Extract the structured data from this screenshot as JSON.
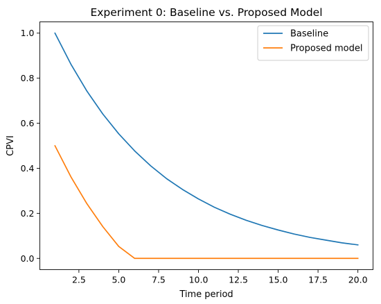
{
  "chart_data": {
    "type": "line",
    "title": "Experiment 0: Baseline vs. Proposed Model",
    "xlabel": "Time period",
    "ylabel": "CPVI",
    "xlim": [
      0.05,
      20.95
    ],
    "ylim": [
      -0.05,
      1.05
    ],
    "x_ticks": [
      2.5,
      5.0,
      7.5,
      10.0,
      12.5,
      15.0,
      17.5,
      20.0
    ],
    "x_tick_labels": [
      "2.5",
      "5.0",
      "7.5",
      "10.0",
      "12.5",
      "15.0",
      "17.5",
      "20.0"
    ],
    "y_ticks": [
      0.0,
      0.2,
      0.4,
      0.6,
      0.8,
      1.0
    ],
    "y_tick_labels": [
      "0.0",
      "0.2",
      "0.4",
      "0.6",
      "0.8",
      "1.0"
    ],
    "grid": false,
    "legend_position": "top-right",
    "x": [
      1,
      2,
      3,
      4,
      5,
      6,
      7,
      8,
      9,
      10,
      11,
      12,
      13,
      14,
      15,
      16,
      17,
      18,
      19,
      20
    ],
    "series": [
      {
        "name": "Baseline",
        "color": "#1f77b4",
        "values": [
          1.0,
          0.862,
          0.743,
          0.641,
          0.553,
          0.477,
          0.411,
          0.354,
          0.306,
          0.264,
          0.227,
          0.196,
          0.169,
          0.146,
          0.126,
          0.108,
          0.093,
          0.081,
          0.069,
          0.06
        ]
      },
      {
        "name": "Proposed model",
        "color": "#ff7f0e",
        "values": [
          0.5,
          0.362,
          0.243,
          0.141,
          0.053,
          0.0,
          0.0,
          0.0,
          0.0,
          0.0,
          0.0,
          0.0,
          0.0,
          0.0,
          0.0,
          0.0,
          0.0,
          0.0,
          0.0,
          0.0
        ]
      }
    ]
  }
}
